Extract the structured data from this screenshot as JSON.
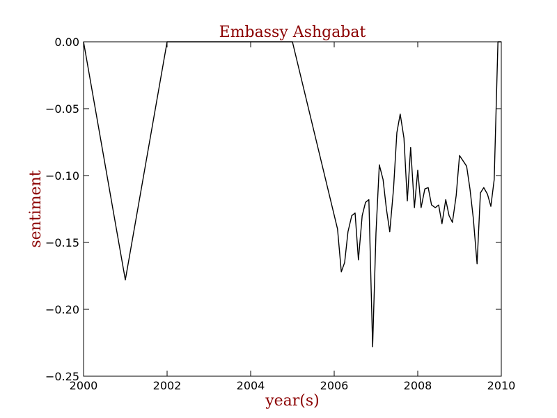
{
  "chart_data": {
    "type": "line",
    "title": "Embassy Ashgabat",
    "xlabel": "year(s)",
    "ylabel": "sentiment",
    "xlim": [
      2000,
      2010
    ],
    "ylim": [
      -0.25,
      0.0
    ],
    "xticks": [
      2000,
      2002,
      2004,
      2006,
      2008,
      2010
    ],
    "xtick_labels": [
      "2000",
      "2002",
      "2004",
      "2006",
      "2008",
      "2010"
    ],
    "yticks": [
      0.0,
      -0.05,
      -0.1,
      -0.15,
      -0.2,
      -0.25
    ],
    "ytick_labels": [
      "0.00",
      "−0.05",
      "−0.10",
      "−0.15",
      "−0.20",
      "−0.25"
    ],
    "grid": false,
    "series": [
      {
        "color": "#000000",
        "x": [
          2000.0,
          2001.0,
          2002.0,
          2005.0,
          2006.08,
          2006.17,
          2006.25,
          2006.33,
          2006.42,
          2006.5,
          2006.58,
          2006.67,
          2006.75,
          2006.83,
          2006.92,
          2007.0,
          2007.08,
          2007.17,
          2007.25,
          2007.33,
          2007.42,
          2007.5,
          2007.58,
          2007.67,
          2007.75,
          2007.83,
          2007.92,
          2008.0,
          2008.08,
          2008.17,
          2008.25,
          2008.33,
          2008.42,
          2008.5,
          2008.58,
          2008.67,
          2008.75,
          2008.83,
          2008.92,
          2009.0,
          2009.17,
          2009.25,
          2009.33,
          2009.42,
          2009.5,
          2009.58,
          2009.67,
          2009.75,
          2009.83,
          2009.92,
          2010.0
        ],
        "y": [
          0.0,
          -0.178,
          0.0,
          0.0,
          -0.14,
          -0.172,
          -0.165,
          -0.142,
          -0.13,
          -0.128,
          -0.163,
          -0.13,
          -0.12,
          -0.118,
          -0.228,
          -0.143,
          -0.092,
          -0.103,
          -0.125,
          -0.142,
          -0.11,
          -0.068,
          -0.054,
          -0.072,
          -0.119,
          -0.079,
          -0.124,
          -0.096,
          -0.124,
          -0.11,
          -0.109,
          -0.122,
          -0.124,
          -0.122,
          -0.136,
          -0.118,
          -0.13,
          -0.135,
          -0.115,
          -0.085,
          -0.093,
          -0.11,
          -0.132,
          -0.166,
          -0.113,
          -0.109,
          -0.114,
          -0.123,
          -0.103,
          0.0,
          0.0
        ]
      }
    ]
  }
}
